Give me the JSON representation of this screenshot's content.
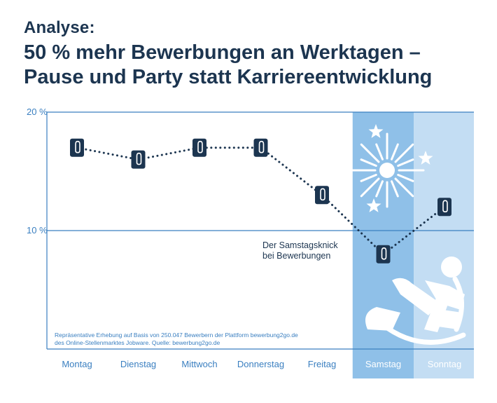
{
  "header": {
    "kicker": "Analyse:",
    "title": "50 % mehr Bewerbungen an Werktagen – Pause und Party statt Karriereentwicklung"
  },
  "chart_data": {
    "type": "line",
    "categories": [
      "Montag",
      "Dienstag",
      "Mittwoch",
      "Donnerstag",
      "Freitag",
      "Samstag",
      "Sonntag"
    ],
    "values": [
      17,
      16,
      17,
      17,
      13,
      8,
      12
    ],
    "ylim": [
      0,
      20
    ],
    "yticks": [
      "20 %",
      "10 %"
    ],
    "ytick_values": [
      20,
      10
    ],
    "annotation": [
      "Der Samstagsknick",
      "bei Bewerbungen"
    ],
    "source": [
      "Repräsentative Erhebung auf Basis von 250.047 Bewerbern der Plattform bewerbung2go.de",
      "des Online-Stellenmarktes Jobware. Quelle: bewerbung2go.de"
    ],
    "highlight": [
      "Samstag",
      "Sonntag"
    ]
  },
  "colors": {
    "navy": "#1c3550",
    "axis_blue": "#3a7fc0",
    "saturday_band": "#8fc0e8",
    "sunday_band": "#c3ddf3"
  }
}
